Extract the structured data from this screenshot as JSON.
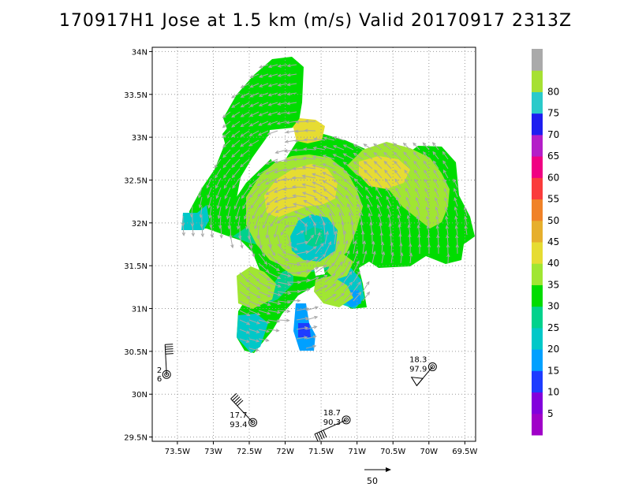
{
  "title": "170917H1 Jose at 1.5 km (m/s) Valid 20170917 2313Z",
  "map": {
    "lon_range": [
      -73.85,
      -69.35
    ],
    "lat_range": [
      29.45,
      34.05
    ],
    "lat_ticks": [
      {
        "value": 34.0,
        "label": "34N"
      },
      {
        "value": 33.5,
        "label": "33.5N"
      },
      {
        "value": 33.0,
        "label": "33N"
      },
      {
        "value": 32.5,
        "label": "32.5N"
      },
      {
        "value": 32.0,
        "label": "32N"
      },
      {
        "value": 31.5,
        "label": "31.5N"
      },
      {
        "value": 31.0,
        "label": "31N"
      },
      {
        "value": 30.5,
        "label": "30.5N"
      },
      {
        "value": 30.0,
        "label": "30N"
      },
      {
        "value": 29.5,
        "label": "29.5N"
      }
    ],
    "lon_ticks": [
      {
        "value": -73.5,
        "label": "73.5W"
      },
      {
        "value": -73.0,
        "label": "73W"
      },
      {
        "value": -72.5,
        "label": "72.5W"
      },
      {
        "value": -72.0,
        "label": "72W"
      },
      {
        "value": -71.5,
        "label": "71.5W"
      },
      {
        "value": -71.0,
        "label": "71W"
      },
      {
        "value": -70.5,
        "label": "70.5W"
      },
      {
        "value": -70.0,
        "label": "70W"
      },
      {
        "value": -69.5,
        "label": "69.5W"
      }
    ],
    "grid": "dotted",
    "storm_center": {
      "lon": -71.85,
      "lat": 31.88
    }
  },
  "colorbar": {
    "levels": [
      {
        "label": "",
        "color": "#a000c8"
      },
      {
        "label": "5",
        "color": "#8200dc"
      },
      {
        "label": "10",
        "color": "#1e3cff"
      },
      {
        "label": "15",
        "color": "#00a0ff"
      },
      {
        "label": "20",
        "color": "#00c8c8"
      },
      {
        "label": "25",
        "color": "#00d28c"
      },
      {
        "label": "30",
        "color": "#00dc00"
      },
      {
        "label": "35",
        "color": "#a0e632"
      },
      {
        "label": "40",
        "color": "#e6dc32"
      },
      {
        "label": "45",
        "color": "#e6af2d"
      },
      {
        "label": "50",
        "color": "#f08228"
      },
      {
        "label": "55",
        "color": "#fa3c3c"
      },
      {
        "label": "60",
        "color": "#f00082"
      },
      {
        "label": "65",
        "color": "#b41ec8"
      },
      {
        "label": "70",
        "color": "#1e1ef0"
      },
      {
        "label": "75",
        "color": "#2acaca"
      },
      {
        "label": "80",
        "color": "#a6e032"
      },
      {
        "label": "",
        "color": "#aaaaaa"
      }
    ]
  },
  "stations": [
    {
      "lon": -73.65,
      "lat": 30.23,
      "top": "2",
      "bottom": "6"
    },
    {
      "lon": -72.45,
      "lat": 29.67,
      "top": "17.7",
      "bottom": "93.4"
    },
    {
      "lon": -71.15,
      "lat": 29.7,
      "top": "18.7",
      "bottom": "90.3"
    },
    {
      "lon": -69.95,
      "lat": 30.32,
      "top": "18.3",
      "bottom": "97.9"
    }
  ],
  "reference_vector": {
    "label": "50",
    "speed": 50
  },
  "colors": {
    "wind_vector": "#a8a8a8",
    "grid": "#999999"
  }
}
